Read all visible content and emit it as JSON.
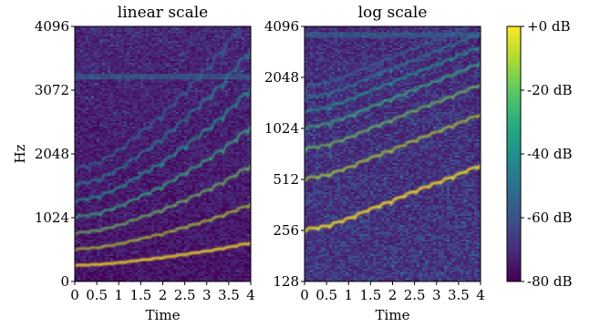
{
  "chart_data": [
    {
      "type": "heatmap",
      "title": "linear scale",
      "xlabel": "Time",
      "ylabel": "Hz",
      "y_scale": "linear",
      "xlim": [
        0,
        4
      ],
      "ylim": [
        0,
        4096
      ],
      "x_ticks": [
        "0",
        "0.5",
        "1",
        "1.5",
        "2",
        "2.5",
        "3",
        "3.5",
        "4"
      ],
      "y_ticks": [
        "0",
        "1024",
        "2048",
        "3072",
        "4096"
      ],
      "fundamental_hz": {
        "x": [
          0,
          0.5,
          1,
          1.5,
          2,
          2.5,
          3,
          3.5,
          4
        ],
        "y": [
          250,
          262,
          290,
          330,
          370,
          420,
          470,
          530,
          600
        ]
      },
      "harmonics": [
        1,
        2,
        3,
        4,
        5,
        6,
        7
      ]
    },
    {
      "type": "heatmap",
      "title": "log scale",
      "xlabel": "Time",
      "ylabel": "",
      "y_scale": "log2",
      "xlim": [
        0,
        4
      ],
      "ylim": [
        128,
        4096
      ],
      "x_ticks": [
        "0",
        "0.5",
        "1",
        "1.5",
        "2",
        "2.5",
        "3",
        "3.5",
        "4"
      ],
      "y_ticks": [
        "128",
        "256",
        "512",
        "1024",
        "2048",
        "4096"
      ]
    }
  ],
  "colorbar": {
    "colormap": "viridis",
    "range_db": [
      -80,
      0
    ],
    "ticks": [
      "+0 dB",
      "-20 dB",
      "-40 dB",
      "-60 dB",
      "-80 dB"
    ]
  }
}
